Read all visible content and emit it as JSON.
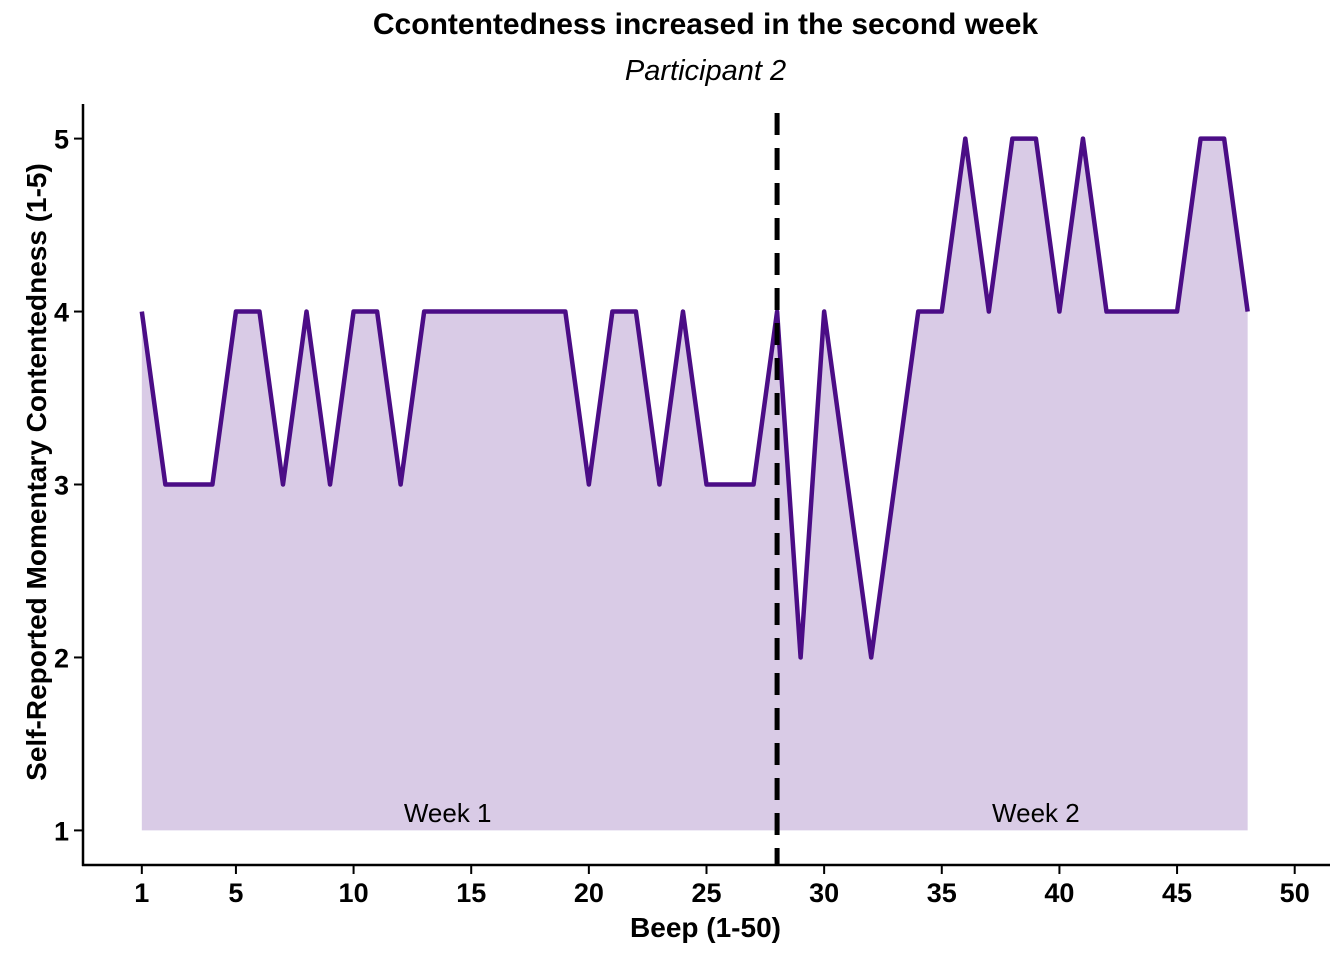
{
  "chart_data": {
    "type": "area",
    "title": "Ccontentedness increased in the second week",
    "subtitle": "Participant 2",
    "xlabel": "Beep (1-50)",
    "ylabel": "Self-Reported Momentary Contentedness (1-5)",
    "xlim": [
      -1.5,
      51.5
    ],
    "ylim": [
      0.8,
      5.2
    ],
    "x_ticks": [
      1,
      5,
      10,
      15,
      20,
      25,
      30,
      35,
      40,
      45,
      50
    ],
    "y_ticks": [
      1,
      2,
      3,
      4,
      5
    ],
    "grid": false,
    "fill_baseline": 1,
    "line_color": "#4b0d86",
    "fill_color": "#d9cbe6",
    "series": [
      {
        "x": [
          1,
          2,
          3,
          4,
          5,
          6,
          7,
          8,
          9,
          10,
          11,
          12,
          13,
          14,
          15,
          16,
          17,
          18,
          19,
          20,
          21,
          22,
          23,
          24,
          25,
          26,
          27,
          28,
          29,
          30,
          31,
          32,
          33,
          34,
          35,
          36,
          37,
          38,
          39,
          40,
          41,
          42,
          43,
          44,
          45,
          46,
          47,
          48
        ],
        "values": [
          4,
          3,
          3,
          3,
          4,
          4,
          3,
          4,
          3,
          4,
          4,
          3,
          4,
          4,
          4,
          4,
          4,
          4,
          4,
          3,
          4,
          4,
          3,
          4,
          3,
          3,
          3,
          4,
          2,
          4,
          3,
          2,
          3,
          4,
          4,
          5,
          4,
          5,
          5,
          4,
          5,
          4,
          4,
          4,
          4,
          5,
          5,
          4
        ]
      }
    ],
    "vline": {
      "x": 28,
      "style": "dashed",
      "color": "#000000"
    },
    "annotations": [
      {
        "text": "Week 1",
        "x": 14,
        "y": 1.1
      },
      {
        "text": "Week 2",
        "x": 39,
        "y": 1.1
      }
    ]
  }
}
